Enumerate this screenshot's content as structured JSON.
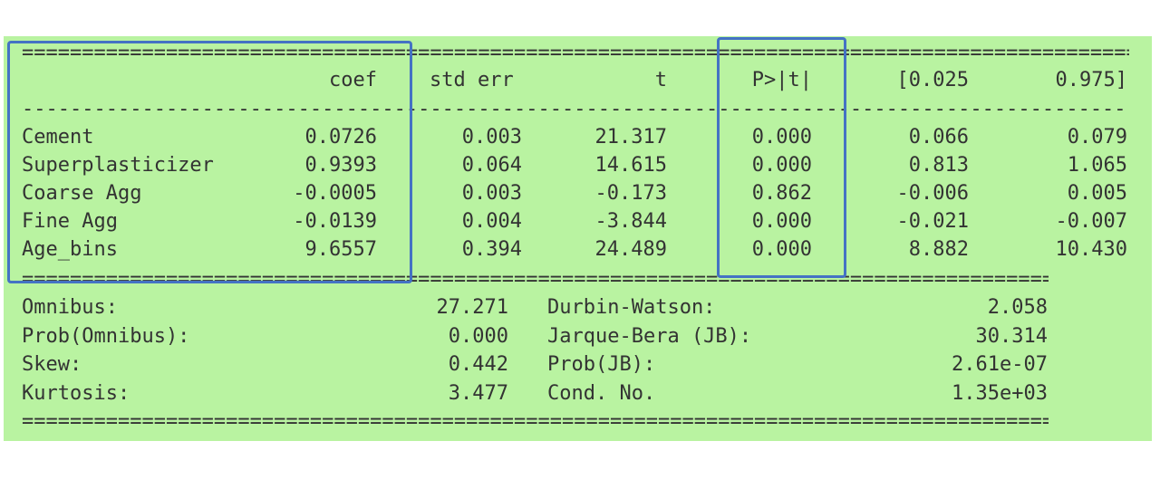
{
  "double_rule": "==============================================================================================",
  "single_rule": "----------------------------------------------------------------------------------------------",
  "header": {
    "coef": "coef",
    "std_err": "std err",
    "t": "t",
    "p": "P>|t|",
    "ci_low": "[0.025",
    "ci_high": "0.975]"
  },
  "rows": [
    {
      "name": "Cement",
      "coef": "0.0726",
      "std_err": "0.003",
      "t": "21.317",
      "p": "0.000",
      "ci_low": "0.066",
      "ci_high": "0.079"
    },
    {
      "name": "Superplasticizer",
      "coef": "0.9393",
      "std_err": "0.064",
      "t": "14.615",
      "p": "0.000",
      "ci_low": "0.813",
      "ci_high": "1.065"
    },
    {
      "name": "Coarse Agg",
      "coef": "-0.0005",
      "std_err": "0.003",
      "t": "-0.173",
      "p": "0.862",
      "ci_low": "-0.006",
      "ci_high": "0.005"
    },
    {
      "name": "Fine Agg",
      "coef": "-0.0139",
      "std_err": "0.004",
      "t": "-3.844",
      "p": "0.000",
      "ci_low": "-0.021",
      "ci_high": "-0.007"
    },
    {
      "name": "Age_bins",
      "coef": "9.6557",
      "std_err": "0.394",
      "t": "24.489",
      "p": "0.000",
      "ci_low": "8.882",
      "ci_high": "10.430"
    }
  ],
  "stats": [
    {
      "left_label": "Omnibus:",
      "left_value": "27.271",
      "right_label": "Durbin-Watson:",
      "right_value": "2.058"
    },
    {
      "left_label": "Prob(Omnibus):",
      "left_value": "0.000",
      "right_label": "Jarque-Bera (JB):",
      "right_value": "30.314"
    },
    {
      "left_label": "Skew:",
      "left_value": "0.442",
      "right_label": "Prob(JB):",
      "right_value": "2.61e-07"
    },
    {
      "left_label": "Kurtosis:",
      "left_value": "3.477",
      "right_label": "Cond. No.",
      "right_value": "1.35e+03"
    }
  ],
  "colors": {
    "background": "#b9f3a1",
    "highlight_box": "#4472c4",
    "text": "#333333"
  }
}
